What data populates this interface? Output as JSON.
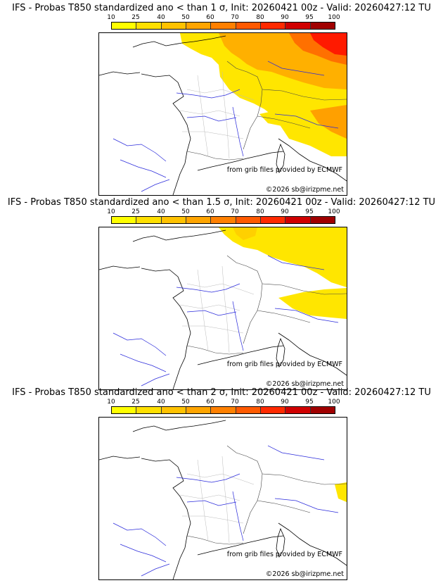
{
  "colorbar": {
    "ticks": [
      "10",
      "25",
      "40",
      "50",
      "60",
      "70",
      "80",
      "90",
      "95",
      "100"
    ],
    "colors": [
      "#ffff00",
      "#ffe000",
      "#ffc200",
      "#ffa500",
      "#ff8000",
      "#ff5a00",
      "#ff2a00",
      "#d00000",
      "#a00000"
    ]
  },
  "panels": [
    {
      "title": "IFS - Probas T850  standardized ano < than 1 σ, Init: 20260421 00z - Valid: 20260427:12 TU",
      "credit_source": "from grib files provided by ECMWF",
      "credit_copyright": "©2026 sb@irizpme.net",
      "level": "high"
    },
    {
      "title": "IFS - Probas T850  standardized ano < than 1.5 σ, Init: 20260421 00z - Valid: 20260427:12 TU",
      "credit_source": "from grib files provided by ECMWF",
      "credit_copyright": "©2026 sb@irizpme.net",
      "level": "medium"
    },
    {
      "title": "IFS - Probas T850  standardized ano < than 2 σ, Init: 20260421 00z - Valid: 20260427:12 TU",
      "credit_source": "from grib files provided by ECMWF",
      "credit_copyright": "©2026 sb@irizpme.net",
      "level": "low"
    }
  ]
}
